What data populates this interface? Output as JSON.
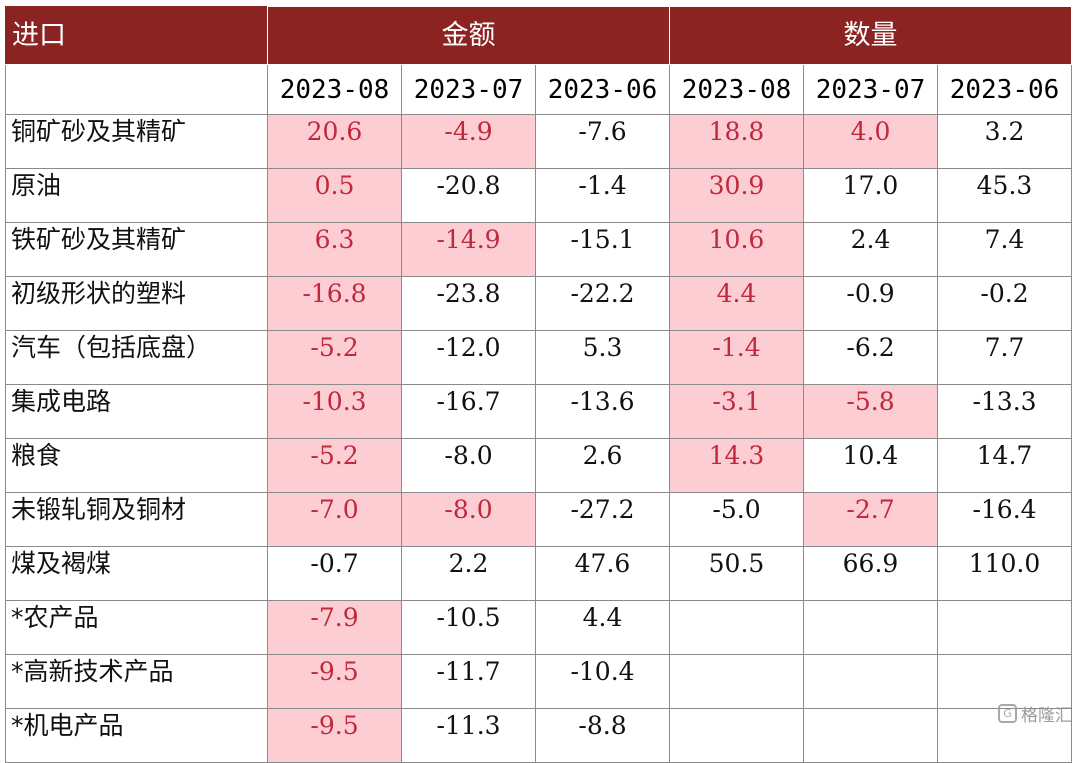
{
  "chart_data": {
    "type": "table",
    "corner_label": "进口",
    "groups": [
      "金额",
      "数量"
    ],
    "periods": [
      "2023-08",
      "2023-07",
      "2023-06"
    ],
    "highlight_color": "#fdcdd4",
    "highlight_text_color": "#c0283c",
    "header_color": "#8b2323",
    "rows": [
      {
        "name": "铜矿砂及其精矿",
        "values": [
          "20.6",
          "-4.9",
          "-7.6",
          "18.8",
          "4.0",
          "3.2"
        ],
        "highlight": [
          true,
          true,
          false,
          true,
          true,
          false
        ]
      },
      {
        "name": "原油",
        "values": [
          "0.5",
          "-20.8",
          "-1.4",
          "30.9",
          "17.0",
          "45.3"
        ],
        "highlight": [
          true,
          false,
          false,
          true,
          false,
          false
        ]
      },
      {
        "name": "铁矿砂及其精矿",
        "values": [
          "6.3",
          "-14.9",
          "-15.1",
          "10.6",
          "2.4",
          "7.4"
        ],
        "highlight": [
          true,
          true,
          false,
          true,
          false,
          false
        ]
      },
      {
        "name": "初级形状的塑料",
        "values": [
          "-16.8",
          "-23.8",
          "-22.2",
          "4.4",
          "-0.9",
          "-0.2"
        ],
        "highlight": [
          true,
          false,
          false,
          true,
          false,
          false
        ]
      },
      {
        "name": "汽车（包括底盘）",
        "values": [
          "-5.2",
          "-12.0",
          "5.3",
          "-1.4",
          "-6.2",
          "7.7"
        ],
        "highlight": [
          true,
          false,
          false,
          true,
          false,
          false
        ]
      },
      {
        "name": "集成电路",
        "values": [
          "-10.3",
          "-16.7",
          "-13.6",
          "-3.1",
          "-5.8",
          "-13.3"
        ],
        "highlight": [
          true,
          false,
          false,
          true,
          true,
          false
        ]
      },
      {
        "name": "粮食",
        "values": [
          "-5.2",
          "-8.0",
          "2.6",
          "14.3",
          "10.4",
          "14.7"
        ],
        "highlight": [
          true,
          false,
          false,
          true,
          false,
          false
        ]
      },
      {
        "name": "未锻轧铜及铜材",
        "values": [
          "-7.0",
          "-8.0",
          "-27.2",
          "-5.0",
          "-2.7",
          "-16.4"
        ],
        "highlight": [
          true,
          true,
          false,
          false,
          true,
          false
        ]
      },
      {
        "name": "煤及褐煤",
        "values": [
          "-0.7",
          "2.2",
          "47.6",
          "50.5",
          "66.9",
          "110.0"
        ],
        "highlight": [
          false,
          false,
          false,
          false,
          false,
          false
        ]
      },
      {
        "name": "*农产品",
        "values": [
          "-7.9",
          "-10.5",
          "4.4",
          "",
          "",
          ""
        ],
        "highlight": [
          true,
          false,
          false,
          false,
          false,
          false
        ]
      },
      {
        "name": "*高新技术产品",
        "values": [
          "-9.5",
          "-11.7",
          "-10.4",
          "",
          "",
          ""
        ],
        "highlight": [
          true,
          false,
          false,
          false,
          false,
          false
        ]
      },
      {
        "name": "*机电产品",
        "values": [
          "-9.5",
          "-11.3",
          "-8.8",
          "",
          "",
          ""
        ],
        "highlight": [
          true,
          false,
          false,
          false,
          false,
          false
        ]
      }
    ]
  },
  "watermark": {
    "icon": "g-logo-icon",
    "text": "格隆汇"
  }
}
